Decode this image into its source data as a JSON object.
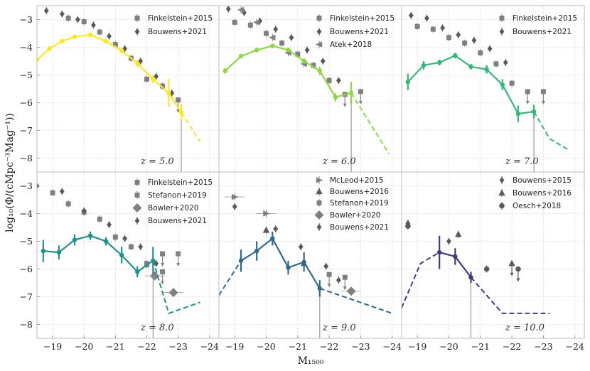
{
  "chart_data": [
    {
      "type": "line",
      "panel": "z5",
      "annotation": "z = 5.0",
      "color": "#fde725",
      "model": {
        "x": [
          -18.5,
          -18.9,
          -19.3,
          -19.7,
          -20.2,
          -20.7,
          -21.2,
          -21.7,
          -22.2,
          -22.7,
          -23.1
        ],
        "y": [
          -4.45,
          -4.05,
          -3.78,
          -3.62,
          -3.55,
          -3.78,
          -4.12,
          -4.58,
          -5.15,
          -5.65,
          -6.35
        ],
        "yerr": [
          0.08,
          0.1,
          0.08,
          0.08,
          0.08,
          0.08,
          0.1,
          0.12,
          0.15,
          0.5,
          0.3
        ]
      },
      "model_dashed": {
        "x": [
          -23.1,
          -23.7
        ],
        "y": [
          -6.35,
          -7.4
        ]
      },
      "legend": [
        {
          "label": "Finkelstein+2015",
          "marker": "square"
        },
        {
          "label": "Bouwens+2021",
          "marker": "diamond"
        }
      ],
      "obs": [
        {
          "name": "Finkelstein+2015",
          "marker": "square",
          "points": [
            [
              -19.5,
              -2.95
            ],
            [
              -20.0,
              -3.08
            ],
            [
              -20.5,
              -3.45
            ],
            [
              -21.0,
              -3.9
            ],
            [
              -21.5,
              -4.4
            ],
            [
              -22.0,
              -5.15
            ],
            [
              -22.5,
              -5.4
            ],
            [
              -23.0,
              -5.9
            ]
          ],
          "upper": [
            [
              -23.0,
              -5.9
            ]
          ]
        },
        {
          "name": "Bouwens+2021",
          "marker": "diamond",
          "points": [
            [
              -18.8,
              -2.68
            ],
            [
              -19.3,
              -2.8
            ],
            [
              -19.8,
              -3.0
            ],
            [
              -20.3,
              -3.2
            ],
            [
              -20.8,
              -3.6
            ],
            [
              -21.3,
              -4.05
            ],
            [
              -21.8,
              -4.5
            ],
            [
              -22.3,
              -5.05
            ],
            [
              -22.8,
              -5.65
            ]
          ],
          "upper": []
        }
      ]
    },
    {
      "type": "line",
      "panel": "z6",
      "annotation": "z = 6.0",
      "color": "#90d743",
      "model": {
        "x": [
          -18.7,
          -19.2,
          -19.7,
          -20.2,
          -20.7,
          -21.2,
          -21.7,
          -22.2,
          -22.7
        ],
        "y": [
          -4.85,
          -4.32,
          -4.1,
          -3.95,
          -4.1,
          -4.5,
          -4.85,
          -5.8,
          -5.65
        ],
        "yerr": [
          0.1,
          0.08,
          0.08,
          0.08,
          0.08,
          0.1,
          0.15,
          0.15,
          0.4
        ]
      },
      "model_dashed": {
        "x": [
          -22.7,
          -23.9
        ],
        "y": [
          -5.65,
          -7.85
        ]
      },
      "legend": [
        {
          "label": "Finkelstein+2015",
          "marker": "square"
        },
        {
          "label": "Bouwens+2021",
          "marker": "diamond"
        },
        {
          "label": "Atek+2018",
          "marker": "triangle-left"
        }
      ],
      "obs": [
        {
          "name": "Finkelstein+2015",
          "marker": "square",
          "points": [
            [
              -19.0,
              -3.1
            ],
            [
              -19.5,
              -3.2
            ],
            [
              -20.0,
              -3.5
            ],
            [
              -20.5,
              -3.85
            ],
            [
              -21.0,
              -4.25
            ],
            [
              -21.5,
              -4.65
            ],
            [
              -22.0,
              -5.2
            ],
            [
              -22.5,
              -5.7
            ],
            [
              -23.0,
              -5.6
            ]
          ],
          "upper": [
            [
              -22.5,
              -5.7
            ],
            [
              -23.0,
              -5.6
            ]
          ]
        },
        {
          "name": "Bouwens+2021",
          "marker": "diamond",
          "points": [
            [
              -18.8,
              -2.62
            ],
            [
              -19.3,
              -2.75
            ],
            [
              -19.8,
              -3.05
            ],
            [
              -20.3,
              -3.35
            ],
            [
              -20.8,
              -3.65
            ],
            [
              -21.3,
              -4.1
            ],
            [
              -21.8,
              -4.5
            ],
            [
              -22.3,
              -5.2
            ]
          ],
          "upper": []
        },
        {
          "name": "Atek+2018",
          "marker": "triangle-left",
          "points": [
            [
              -19.2,
              -2.65
            ],
            [
              -19.7,
              -3.1
            ],
            [
              -20.2,
              -3.65
            ],
            [
              -20.7,
              -4.2
            ],
            [
              -21.2,
              -4.6
            ]
          ],
          "upper": []
        }
      ]
    },
    {
      "type": "line",
      "panel": "z7",
      "annotation": "z = 7.0",
      "color": "#35b779",
      "model": {
        "x": [
          -18.7,
          -19.2,
          -19.7,
          -20.2,
          -20.7,
          -21.2,
          -21.7,
          -22.2,
          -22.7
        ],
        "y": [
          -5.25,
          -4.65,
          -4.55,
          -4.3,
          -4.7,
          -4.8,
          -5.35,
          -6.4,
          -6.32
        ],
        "yerr": [
          0.3,
          0.15,
          0.1,
          0.1,
          0.1,
          0.15,
          0.2,
          0.3,
          0.25
        ]
      },
      "model_dashed": {
        "x": [
          -22.7,
          -23.2,
          -23.8
        ],
        "y": [
          -6.32,
          -7.3,
          -7.7
        ]
      },
      "legend": [
        {
          "label": "Finkelstein+2015",
          "marker": "square"
        },
        {
          "label": "Bouwens+2021",
          "marker": "diamond"
        }
      ],
      "obs": [
        {
          "name": "Finkelstein+2015",
          "marker": "square",
          "points": [
            [
              -19.0,
              -3.25
            ],
            [
              -19.5,
              -3.35
            ],
            [
              -20.0,
              -3.65
            ],
            [
              -20.5,
              -3.85
            ],
            [
              -21.0,
              -4.2
            ],
            [
              -21.5,
              -4.6
            ],
            [
              -22.0,
              -5.3
            ],
            [
              -22.5,
              -5.6
            ],
            [
              -23.0,
              -5.6
            ]
          ],
          "upper": [
            [
              -22.5,
              -5.6
            ],
            [
              -23.0,
              -5.6
            ]
          ]
        },
        {
          "name": "Bouwens+2021",
          "marker": "diamond",
          "points": [
            [
              -18.8,
              -2.85
            ],
            [
              -19.3,
              -2.95
            ],
            [
              -19.8,
              -3.3
            ],
            [
              -20.3,
              -3.55
            ],
            [
              -20.8,
              -3.75
            ],
            [
              -21.3,
              -4.05
            ],
            [
              -21.8,
              -4.55
            ]
          ],
          "upper": []
        }
      ]
    },
    {
      "type": "line",
      "panel": "z8",
      "annotation": "z = 8.0",
      "color": "#21918c",
      "model": {
        "x": [
          -18.7,
          -19.2,
          -19.7,
          -20.2,
          -20.7,
          -21.2,
          -21.7,
          -22.2
        ],
        "y": [
          -5.35,
          -5.4,
          -4.95,
          -4.8,
          -5.0,
          -5.5,
          -6.1,
          -5.7
        ],
        "yerr": [
          0.4,
          0.25,
          0.2,
          0.15,
          0.15,
          0.3,
          0.2,
          0.5
        ]
      },
      "model_dashed": {
        "x": [
          -22.2,
          -22.7,
          -23.7
        ],
        "y": [
          -5.7,
          -7.6,
          -7.2
        ]
      },
      "legend": [
        {
          "label": "Finkelstein+2015",
          "marker": "square"
        },
        {
          "label": "Stefanon+2019",
          "marker": "square"
        },
        {
          "label": "Bowler+2020",
          "marker": "diamond-big"
        },
        {
          "label": "Bouwens+2021",
          "marker": "diamond"
        }
      ],
      "obs": [
        {
          "name": "Finkelstein+2015",
          "marker": "square",
          "points": [
            [
              -19.0,
              -3.25
            ],
            [
              -19.5,
              -3.65
            ],
            [
              -20.0,
              -3.95
            ],
            [
              -20.5,
              -4.2
            ],
            [
              -21.0,
              -4.85
            ],
            [
              -21.5,
              -5.2
            ],
            [
              -22.0,
              -5.8
            ],
            [
              -22.5,
              -5.45
            ],
            [
              -23.0,
              -5.45
            ]
          ],
          "upper": [
            [
              -22.5,
              -5.45
            ],
            [
              -23.0,
              -5.45
            ]
          ]
        },
        {
          "name": "Stefanon+2019",
          "marker": "square",
          "points": [
            [
              -22.0,
              -5.85
            ],
            [
              -22.5,
              -6.1
            ]
          ],
          "upper": [
            [
              -22.5,
              -6.1
            ]
          ]
        },
        {
          "name": "Bowler+2020",
          "marker": "diamond-big",
          "points": [
            [
              -22.25,
              -6.25
            ],
            [
              -22.85,
              -6.85
            ]
          ],
          "upper": []
        },
        {
          "name": "Bouwens+2021",
          "marker": "diamond",
          "points": [
            [
              -18.5,
              -3.0
            ],
            [
              -19.3,
              -3.2
            ],
            [
              -20.0,
              -3.9
            ],
            [
              -20.8,
              -4.4
            ],
            [
              -21.3,
              -4.9
            ],
            [
              -21.8,
              -5.2
            ],
            [
              -22.3,
              -5.8
            ]
          ],
          "upper": []
        }
      ]
    },
    {
      "type": "line",
      "panel": "z9",
      "annotation": "z = 9.0",
      "color": "#31688e",
      "model": {
        "x": [
          -19.2,
          -19.7,
          -20.2,
          -20.7,
          -21.2,
          -21.7
        ],
        "y": [
          -5.7,
          -5.35,
          -4.9,
          -5.95,
          -5.75,
          -6.7
        ],
        "yerr": [
          0.4,
          0.35,
          0.25,
          0.25,
          0.35,
          0.3
        ]
      },
      "model_dashed_left": {
        "x": [
          -18.5,
          -19.2
        ],
        "y": [
          -6.95,
          -5.7
        ]
      },
      "model_dashed": {
        "x": [
          -21.7,
          -24.0
        ],
        "y": [
          -6.7,
          -7.6
        ]
      },
      "legend": [
        {
          "label": "McLeod+2015",
          "marker": "triangle-right"
        },
        {
          "label": "Bouwens+2016",
          "marker": "triangle-up"
        },
        {
          "label": "Stefanon+2019",
          "marker": "square"
        },
        {
          "label": "Bowler+2020",
          "marker": "diamond-big"
        },
        {
          "label": "Bouwens+2021",
          "marker": "diamond"
        }
      ],
      "obs": [
        {
          "name": "McLeod+2015",
          "marker": "triangle-right",
          "points": [
            [
              -19.0,
              -3.4
            ],
            [
              -20.0,
              -4.0
            ]
          ],
          "upper": []
        },
        {
          "name": "Bouwens+2016",
          "marker": "triangle-up",
          "points": [
            [
              -20.0,
              -4.6
            ],
            [
              -21.2,
              -5.8
            ]
          ],
          "upper": []
        },
        {
          "name": "Stefanon+2019",
          "marker": "square",
          "points": [
            [
              -22.0,
              -6.2
            ],
            [
              -22.5,
              -6.3
            ]
          ],
          "upper": [
            [
              -22.0,
              -6.2
            ],
            [
              -22.5,
              -6.3
            ]
          ]
        },
        {
          "name": "Bowler+2020",
          "marker": "diamond-big",
          "points": [
            [
              -22.7,
              -6.8
            ]
          ],
          "upper": []
        },
        {
          "name": "Bouwens+2021",
          "marker": "diamond",
          "points": [
            [
              -19.0,
              -3.75
            ],
            [
              -20.3,
              -4.55
            ],
            [
              -21.1,
              -5.2
            ],
            [
              -21.9,
              -5.9
            ],
            [
              -22.3,
              -6.4
            ]
          ],
          "upper": []
        }
      ]
    },
    {
      "type": "line",
      "panel": "z10",
      "annotation": "z = 10.0",
      "color": "#443983",
      "model": {
        "x": [
          -19.7,
          -20.2,
          -20.7
        ],
        "y": [
          -5.4,
          -5.55,
          -6.3
        ],
        "yerr": [
          0.6,
          0.3,
          0.2
        ]
      },
      "model_dashed_left": {
        "x": [
          -18.5,
          -19.1,
          -19.7
        ],
        "y": [
          -7.4,
          -5.8,
          -5.4
        ]
      },
      "model_dashed": {
        "x": [
          -20.7,
          -21.7,
          -23.2
        ],
        "y": [
          -6.3,
          -7.6,
          -7.6
        ]
      },
      "legend": [
        {
          "label": "Bouwens+2015",
          "marker": "diamond"
        },
        {
          "label": "Bouwens+2016",
          "marker": "triangle-up"
        },
        {
          "label": "Oesch+2018",
          "marker": "circle"
        }
      ],
      "obs": [
        {
          "name": "Bouwens+2015",
          "marker": "diamond",
          "points": [
            [
              -18.7,
              -4.35
            ],
            [
              -20.0,
              -5.0
            ]
          ],
          "upper": []
        },
        {
          "name": "Bouwens+2016",
          "marker": "triangle-up",
          "points": [
            [
              -20.3,
              -4.75
            ],
            [
              -22.0,
              -5.8
            ]
          ],
          "upper": [
            [
              -22.0,
              -5.8
            ]
          ]
        },
        {
          "name": "Oesch+2018",
          "marker": "circle",
          "points": [
            [
              -18.7,
              -4.45
            ],
            [
              -21.2,
              -6.0
            ],
            [
              -22.2,
              -6.0
            ]
          ],
          "upper": [
            [
              -22.2,
              -6.0
            ]
          ]
        }
      ]
    }
  ],
  "axes": {
    "xlim": [
      -18.5,
      -24.3
    ],
    "ylim_top": [
      -8.5,
      -2.5
    ],
    "ylim_bottom": [
      -8.5,
      -2.5
    ],
    "xticks": [
      -19,
      -20,
      -21,
      -22,
      -23,
      -24
    ],
    "xtick_labels": [
      "−19",
      "−20",
      "−21",
      "−22",
      "−23",
      "−24"
    ],
    "yticks": [
      -3,
      -4,
      -5,
      -6,
      -7,
      -8
    ],
    "ytick_labels": [
      "−3",
      "−4",
      "−5",
      "−6",
      "−7",
      "−8"
    ],
    "grid": true
  },
  "ylabel": "log₁₀(Φ/(cMpc⁻³Mag⁻¹))",
  "xlabel": "M₁₅₀₀"
}
